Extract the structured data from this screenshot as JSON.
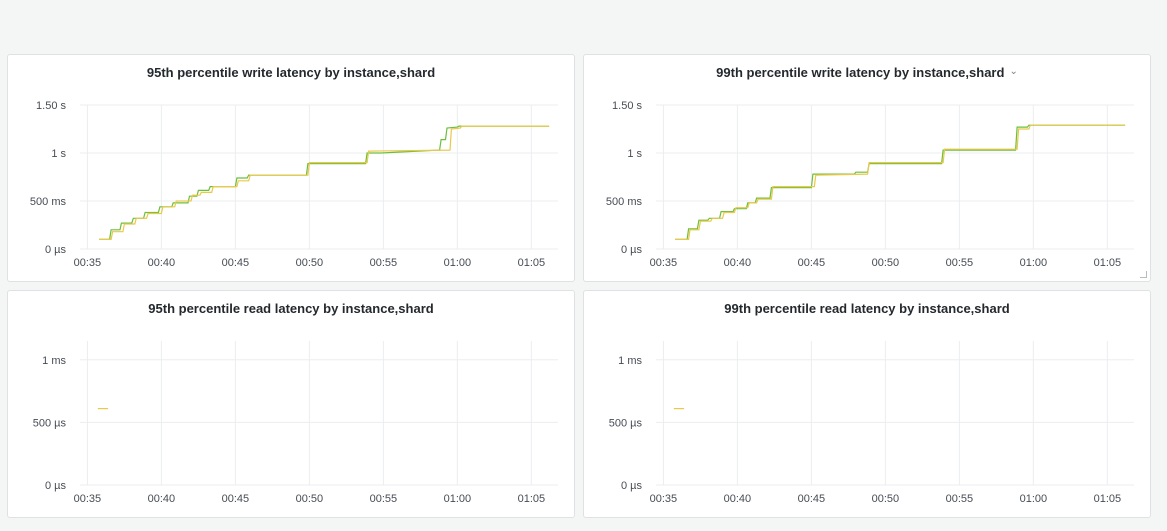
{
  "dashboard": {
    "panels": [
      {
        "title": "95th percentile write latency by instance,shard",
        "has_menu": false
      },
      {
        "title": "99th percentile write latency by instance,shard",
        "has_menu": true,
        "menu_icon": "chevron-down-icon"
      },
      {
        "title": "95th percentile read latency by instance,shard",
        "has_menu": false
      },
      {
        "title": "99th percentile read latency by instance,shard",
        "has_menu": false
      }
    ]
  },
  "colors": {
    "series_green": "#6bbf3c",
    "series_yellow": "#eac84a",
    "grid": "#ebedef",
    "axis_text": "#464c54"
  },
  "chart_data": [
    {
      "type": "line",
      "title": "95th percentile write latency by instance,shard",
      "x_ticks": [
        "00:35",
        "00:40",
        "00:45",
        "00:50",
        "00:55",
        "01:00",
        "01:05"
      ],
      "x_range_minutes": [
        34.5,
        66.8
      ],
      "y_ticks": [
        {
          "value": 0,
          "label": "0 µs"
        },
        {
          "value": 500,
          "label": "500 ms"
        },
        {
          "value": 1000,
          "label": "1 s"
        },
        {
          "value": 1500,
          "label": "1.50 s"
        }
      ],
      "y_range_ms": [
        0,
        1500
      ],
      "grid": true,
      "legend": "none",
      "series": [
        {
          "color": "#6bbf3c",
          "points": [
            [
              35.8,
              100
            ],
            [
              36.5,
              100
            ],
            [
              36.6,
              200
            ],
            [
              37.2,
              200
            ],
            [
              37.3,
              270
            ],
            [
              38.0,
              270
            ],
            [
              38.1,
              320
            ],
            [
              38.8,
              320
            ],
            [
              38.9,
              380
            ],
            [
              39.8,
              380
            ],
            [
              39.9,
              440
            ],
            [
              40.7,
              440
            ],
            [
              40.8,
              480
            ],
            [
              41.8,
              480
            ],
            [
              41.9,
              550
            ],
            [
              42.4,
              550
            ],
            [
              42.5,
              610
            ],
            [
              43.2,
              610
            ],
            [
              43.3,
              650
            ],
            [
              44.2,
              650
            ],
            [
              45.0,
              650
            ],
            [
              45.1,
              740
            ],
            [
              45.8,
              740
            ],
            [
              45.9,
              770
            ],
            [
              46.8,
              770
            ],
            [
              49.8,
              770
            ],
            [
              49.9,
              890
            ],
            [
              50.8,
              890
            ],
            [
              53.8,
              890
            ],
            [
              53.9,
              1000
            ],
            [
              54.8,
              1000
            ],
            [
              58.8,
              1030
            ],
            [
              58.9,
              1140
            ],
            [
              59.2,
              1140
            ],
            [
              59.3,
              1260
            ],
            [
              60.0,
              1270
            ],
            [
              60.1,
              1280
            ],
            [
              61.0,
              1280
            ],
            [
              66.2,
              1280
            ]
          ]
        },
        {
          "color": "#eac84a",
          "points": [
            [
              35.8,
              100
            ],
            [
              36.6,
              100
            ],
            [
              36.7,
              180
            ],
            [
              37.4,
              180
            ],
            [
              37.5,
              260
            ],
            [
              38.2,
              260
            ],
            [
              38.3,
              320
            ],
            [
              39.0,
              320
            ],
            [
              39.1,
              370
            ],
            [
              40.0,
              370
            ],
            [
              40.1,
              440
            ],
            [
              40.9,
              440
            ],
            [
              41.0,
              500
            ],
            [
              42.0,
              500
            ],
            [
              42.1,
              560
            ],
            [
              42.6,
              560
            ],
            [
              42.7,
              590
            ],
            [
              43.4,
              590
            ],
            [
              43.5,
              650
            ],
            [
              45.1,
              650
            ],
            [
              45.2,
              710
            ],
            [
              45.9,
              710
            ],
            [
              46.0,
              770
            ],
            [
              49.9,
              770
            ],
            [
              50.0,
              900
            ],
            [
              53.9,
              900
            ],
            [
              54.0,
              1020
            ],
            [
              59.5,
              1030
            ],
            [
              59.6,
              1250
            ],
            [
              60.2,
              1260
            ],
            [
              60.3,
              1280
            ],
            [
              66.2,
              1280
            ]
          ]
        }
      ]
    },
    {
      "type": "line",
      "title": "99th percentile write latency by instance,shard",
      "x_ticks": [
        "00:35",
        "00:40",
        "00:45",
        "00:50",
        "00:55",
        "01:00",
        "01:05"
      ],
      "x_range_minutes": [
        34.5,
        66.8
      ],
      "y_ticks": [
        {
          "value": 0,
          "label": "0 µs"
        },
        {
          "value": 500,
          "label": "500 ms"
        },
        {
          "value": 1000,
          "label": "1 s"
        },
        {
          "value": 1500,
          "label": "1.50 s"
        }
      ],
      "y_range_ms": [
        0,
        1500
      ],
      "grid": true,
      "legend": "none",
      "series": [
        {
          "color": "#6bbf3c",
          "points": [
            [
              35.8,
              100
            ],
            [
              36.6,
              100
            ],
            [
              36.7,
              210
            ],
            [
              37.3,
              210
            ],
            [
              37.4,
              300
            ],
            [
              38.0,
              300
            ],
            [
              38.1,
              320
            ],
            [
              38.8,
              320
            ],
            [
              38.9,
              390
            ],
            [
              39.7,
              390
            ],
            [
              39.8,
              420
            ],
            [
              40.6,
              420
            ],
            [
              40.7,
              480
            ],
            [
              41.2,
              480
            ],
            [
              41.3,
              530
            ],
            [
              42.2,
              530
            ],
            [
              42.3,
              640
            ],
            [
              45.0,
              640
            ],
            [
              45.1,
              780
            ],
            [
              47.9,
              780
            ],
            [
              48.0,
              800
            ],
            [
              48.8,
              800
            ],
            [
              48.9,
              890
            ],
            [
              53.8,
              890
            ],
            [
              53.9,
              1030
            ],
            [
              58.8,
              1030
            ],
            [
              58.9,
              1270
            ],
            [
              59.6,
              1270
            ],
            [
              59.7,
              1290
            ],
            [
              66.2,
              1290
            ]
          ]
        },
        {
          "color": "#eac84a",
          "points": [
            [
              35.8,
              100
            ],
            [
              36.7,
              100
            ],
            [
              36.8,
              200
            ],
            [
              37.4,
              200
            ],
            [
              37.5,
              290
            ],
            [
              38.2,
              290
            ],
            [
              38.3,
              320
            ],
            [
              39.0,
              320
            ],
            [
              39.1,
              380
            ],
            [
              39.8,
              380
            ],
            [
              39.9,
              430
            ],
            [
              40.7,
              430
            ],
            [
              40.8,
              480
            ],
            [
              41.3,
              480
            ],
            [
              41.4,
              520
            ],
            [
              42.3,
              520
            ],
            [
              42.4,
              650
            ],
            [
              45.2,
              650
            ],
            [
              45.3,
              770
            ],
            [
              48.8,
              780
            ],
            [
              48.9,
              900
            ],
            [
              53.9,
              900
            ],
            [
              54.0,
              1040
            ],
            [
              58.9,
              1040
            ],
            [
              59.0,
              1250
            ],
            [
              59.7,
              1250
            ],
            [
              59.8,
              1290
            ],
            [
              66.2,
              1290
            ]
          ]
        }
      ]
    },
    {
      "type": "line",
      "title": "95th percentile read latency by instance,shard",
      "x_ticks": [
        "00:35",
        "00:40",
        "00:45",
        "00:50",
        "00:55",
        "01:00",
        "01:05"
      ],
      "x_range_minutes": [
        34.5,
        66.8
      ],
      "y_ticks": [
        {
          "value": 0,
          "label": "0 µs"
        },
        {
          "value": 0.5,
          "label": "500 µs"
        },
        {
          "value": 1,
          "label": "1 ms"
        }
      ],
      "y_range_ms": [
        0,
        1.15
      ],
      "grid": true,
      "legend": "none",
      "series": [
        {
          "color": "#eac84a",
          "points": [
            [
              35.7,
              0.61
            ],
            [
              36.4,
              0.61
            ]
          ]
        }
      ]
    },
    {
      "type": "line",
      "title": "99th percentile read latency by instance,shard",
      "x_ticks": [
        "00:35",
        "00:40",
        "00:45",
        "00:50",
        "00:55",
        "01:00",
        "01:05"
      ],
      "x_range_minutes": [
        34.5,
        66.8
      ],
      "y_ticks": [
        {
          "value": 0,
          "label": "0 µs"
        },
        {
          "value": 0.5,
          "label": "500 µs"
        },
        {
          "value": 1,
          "label": "1 ms"
        }
      ],
      "y_range_ms": [
        0,
        1.15
      ],
      "grid": true,
      "legend": "none",
      "series": [
        {
          "color": "#eac84a",
          "points": [
            [
              35.7,
              0.61
            ],
            [
              36.4,
              0.61
            ]
          ]
        }
      ]
    }
  ]
}
